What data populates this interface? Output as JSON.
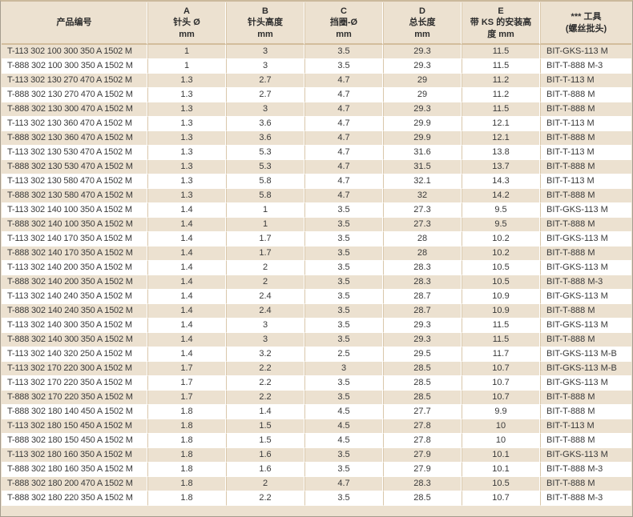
{
  "table": {
    "headers": [
      {
        "name": "product-number",
        "lines": [
          "产品编号"
        ]
      },
      {
        "name": "a-needle-diameter",
        "lines": [
          "A",
          "针头 Ø",
          "mm"
        ]
      },
      {
        "name": "b-needle-height",
        "lines": [
          "B",
          "针头高度",
          "mm"
        ]
      },
      {
        "name": "c-retaining-ring-diameter",
        "lines": [
          "C",
          "挡圈-Ø",
          "mm"
        ]
      },
      {
        "name": "d-total-length",
        "lines": [
          "D",
          "总长度",
          "mm"
        ]
      },
      {
        "name": "e-mounting-height-with-ks",
        "lines": [
          "E",
          "带 KS 的安装高",
          "度 mm"
        ]
      },
      {
        "name": "tool-screwdriver-bit",
        "lines": [
          "*** 工具",
          "(螺丝批头)"
        ]
      }
    ],
    "rows": [
      [
        "T-113 302 100 300 350 A 1502 M",
        "1",
        "3",
        "3.5",
        "29.3",
        "11.5",
        "BIT-GKS-113 M"
      ],
      [
        "T-888 302 100 300 350 A 1502 M",
        "1",
        "3",
        "3.5",
        "29.3",
        "11.5",
        "BIT-T-888 M-3"
      ],
      [
        "T-113 302 130 270 470 A 1502 M",
        "1.3",
        "2.7",
        "4.7",
        "29",
        "11.2",
        "BIT-T-113 M"
      ],
      [
        "T-888 302 130 270 470 A 1502 M",
        "1.3",
        "2.7",
        "4.7",
        "29",
        "11.2",
        "BIT-T-888 M"
      ],
      [
        "T-888 302 130 300 470 A 1502 M",
        "1.3",
        "3",
        "4.7",
        "29.3",
        "11.5",
        "BIT-T-888 M"
      ],
      [
        "T-113 302 130 360 470 A 1502 M",
        "1.3",
        "3.6",
        "4.7",
        "29.9",
        "12.1",
        "BIT-T-113 M"
      ],
      [
        "T-888 302 130 360 470 A 1502 M",
        "1.3",
        "3.6",
        "4.7",
        "29.9",
        "12.1",
        "BIT-T-888 M"
      ],
      [
        "T-113 302 130 530 470 A 1502 M",
        "1.3",
        "5.3",
        "4.7",
        "31.6",
        "13.8",
        "BIT-T-113 M"
      ],
      [
        "T-888 302 130 530 470 A 1502 M",
        "1.3",
        "5.3",
        "4.7",
        "31.5",
        "13.7",
        "BIT-T-888 M"
      ],
      [
        "T-113 302 130 580 470 A 1502 M",
        "1.3",
        "5.8",
        "4.7",
        "32.1",
        "14.3",
        "BIT-T-113 M"
      ],
      [
        "T-888 302 130 580 470 A 1502 M",
        "1.3",
        "5.8",
        "4.7",
        "32",
        "14.2",
        "BIT-T-888 M"
      ],
      [
        "T-113 302 140 100 350 A 1502 M",
        "1.4",
        "1",
        "3.5",
        "27.3",
        "9.5",
        "BIT-GKS-113 M"
      ],
      [
        "T-888 302 140 100 350 A 1502 M",
        "1.4",
        "1",
        "3.5",
        "27.3",
        "9.5",
        "BIT-T-888 M"
      ],
      [
        "T-113 302 140 170 350 A 1502 M",
        "1.4",
        "1.7",
        "3.5",
        "28",
        "10.2",
        "BIT-GKS-113 M"
      ],
      [
        "T-888 302 140 170 350 A 1502 M",
        "1.4",
        "1.7",
        "3.5",
        "28",
        "10.2",
        "BIT-T-888 M"
      ],
      [
        "T-113 302 140 200 350 A 1502 M",
        "1.4",
        "2",
        "3.5",
        "28.3",
        "10.5",
        "BIT-GKS-113 M"
      ],
      [
        "T-888 302 140 200 350 A 1502 M",
        "1.4",
        "2",
        "3.5",
        "28.3",
        "10.5",
        "BIT-T-888 M-3"
      ],
      [
        "T-113 302 140 240 350 A 1502 M",
        "1.4",
        "2.4",
        "3.5",
        "28.7",
        "10.9",
        "BIT-GKS-113 M"
      ],
      [
        "T-888 302 140 240 350 A 1502 M",
        "1.4",
        "2.4",
        "3.5",
        "28.7",
        "10.9",
        "BIT-T-888 M"
      ],
      [
        "T-113 302 140 300 350 A 1502 M",
        "1.4",
        "3",
        "3.5",
        "29.3",
        "11.5",
        "BIT-GKS-113 M"
      ],
      [
        "T-888 302 140 300 350 A 1502 M",
        "1.4",
        "3",
        "3.5",
        "29.3",
        "11.5",
        "BIT-T-888 M"
      ],
      [
        "T-113 302 140 320 250 A 1502 M",
        "1.4",
        "3.2",
        "2.5",
        "29.5",
        "11.7",
        "BIT-GKS-113 M-B"
      ],
      [
        "T-113 302 170 220 300 A 1502 M",
        "1.7",
        "2.2",
        "3",
        "28.5",
        "10.7",
        "BIT-GKS-113 M-B"
      ],
      [
        "T-113 302 170 220 350 A 1502 M",
        "1.7",
        "2.2",
        "3.5",
        "28.5",
        "10.7",
        "BIT-GKS-113 M"
      ],
      [
        "T-888 302 170 220 350 A 1502 M",
        "1.7",
        "2.2",
        "3.5",
        "28.5",
        "10.7",
        "BIT-T-888 M"
      ],
      [
        "T-888 302 180 140 450 A 1502 M",
        "1.8",
        "1.4",
        "4.5",
        "27.7",
        "9.9",
        "BIT-T-888 M"
      ],
      [
        "T-113 302 180 150 450 A 1502 M",
        "1.8",
        "1.5",
        "4.5",
        "27.8",
        "10",
        "BIT-T-113 M"
      ],
      [
        "T-888 302 180 150 450 A 1502 M",
        "1.8",
        "1.5",
        "4.5",
        "27.8",
        "10",
        "BIT-T-888 M"
      ],
      [
        "T-113 302 180 160 350 A 1502 M",
        "1.8",
        "1.6",
        "3.5",
        "27.9",
        "10.1",
        "BIT-GKS-113 M"
      ],
      [
        "T-888 302 180 160 350 A 1502 M",
        "1.8",
        "1.6",
        "3.5",
        "27.9",
        "10.1",
        "BIT-T-888 M-3"
      ],
      [
        "T-888 302 180 200 470 A 1502 M",
        "1.8",
        "2",
        "4.7",
        "28.3",
        "10.5",
        "BIT-T-888 M"
      ],
      [
        "T-888 302 180 220 350 A 1502 M",
        "1.8",
        "2.2",
        "3.5",
        "28.5",
        "10.7",
        "BIT-T-888 M-3"
      ]
    ]
  },
  "colors": {
    "row_beige": "#ece1d0",
    "row_white": "#ffffff",
    "grid_tan": "#d9c7aa",
    "grid_white": "#ffffff",
    "header_rule": "#d2bd9c",
    "outer_border": "#a59c8e",
    "outer_border_top": "#cbb99c",
    "text": "#3a3a3a"
  }
}
